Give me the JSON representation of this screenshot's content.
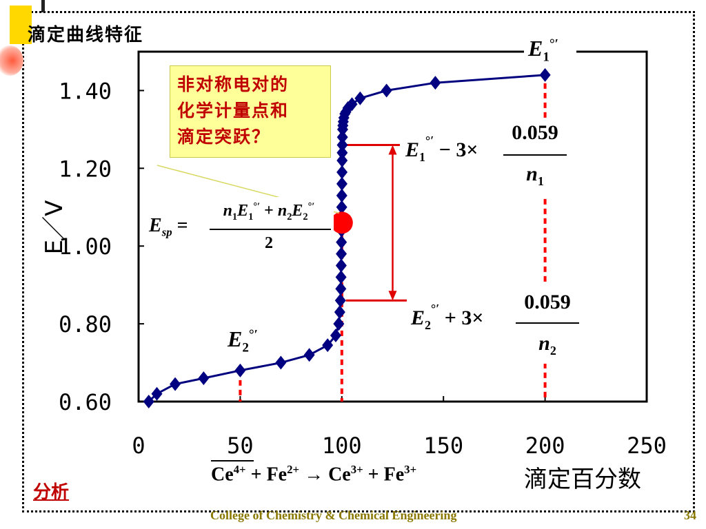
{
  "slide": {
    "title": "滴定曲线特征",
    "analysis_link": "分析",
    "footer": "College of Chemistry & Chemical Engineering",
    "page_number": "34"
  },
  "callout": {
    "lines": [
      "非对称电对的",
      "化学计量点和",
      "滴定突跃？"
    ]
  },
  "equations": {
    "e1_standard": "E1°′",
    "upper_limit": "E1°′ − 3 × 0.059 / n1",
    "lower_limit": "E2°′ + 3 × 0.059 / n2",
    "e2_standard": "E2°′",
    "esp": "Esp = (n1E1°′ + n2E2°′) / 2",
    "reaction": "Ce4+ + Fe2+ → Ce3+ + Fe3+"
  },
  "colors": {
    "curve": "#00007f",
    "marker": "#000080",
    "sp_point": "#ff0000",
    "reference_lines": "#ff0000",
    "callout_text": "#c00000",
    "callout_bg": "#ffff99"
  },
  "chart_data": {
    "type": "line",
    "title": "",
    "xlabel": "滴定百分数",
    "ylabel": "E／V",
    "xlim": [
      0,
      250
    ],
    "ylim": [
      0.6,
      1.5
    ],
    "x_ticks": [
      "0",
      "50",
      "100",
      "150",
      "200",
      "250"
    ],
    "y_ticks": [
      "0.60",
      "0.80",
      "1.00",
      "1.20",
      "1.40"
    ],
    "y_tick_values": [
      0.6,
      0.8,
      1.0,
      1.2,
      1.4
    ],
    "x_tick_values": [
      0,
      50,
      100,
      150,
      200,
      250
    ],
    "grid": false,
    "series": [
      {
        "x": [
          5,
          9,
          18,
          32,
          50,
          70,
          84,
          93,
          97,
          98.5,
          99,
          99.3,
          99.5,
          99.6,
          99.7,
          99.75,
          99.8,
          99.85,
          99.9,
          99.95,
          100,
          100.05,
          100.1,
          100.15,
          100.2,
          100.25,
          100.3,
          100.4,
          100.5,
          100.7,
          101,
          101.5,
          102,
          103,
          105,
          109,
          122,
          146,
          200
        ],
        "y": [
          0.6,
          0.62,
          0.645,
          0.66,
          0.68,
          0.7,
          0.72,
          0.745,
          0.77,
          0.8,
          0.83,
          0.86,
          0.89,
          0.92,
          0.95,
          0.98,
          1.01,
          1.04,
          1.07,
          1.1,
          1.13,
          1.16,
          1.19,
          1.22,
          1.24,
          1.26,
          1.28,
          1.3,
          1.31,
          1.32,
          1.33,
          1.34,
          1.345,
          1.355,
          1.365,
          1.38,
          1.4,
          1.42,
          1.44
        ]
      }
    ],
    "sp_point": {
      "x": 100,
      "y": 1.06
    },
    "jump_range": [
      0.86,
      1.26
    ],
    "reference_x": [
      50,
      100,
      200
    ]
  }
}
